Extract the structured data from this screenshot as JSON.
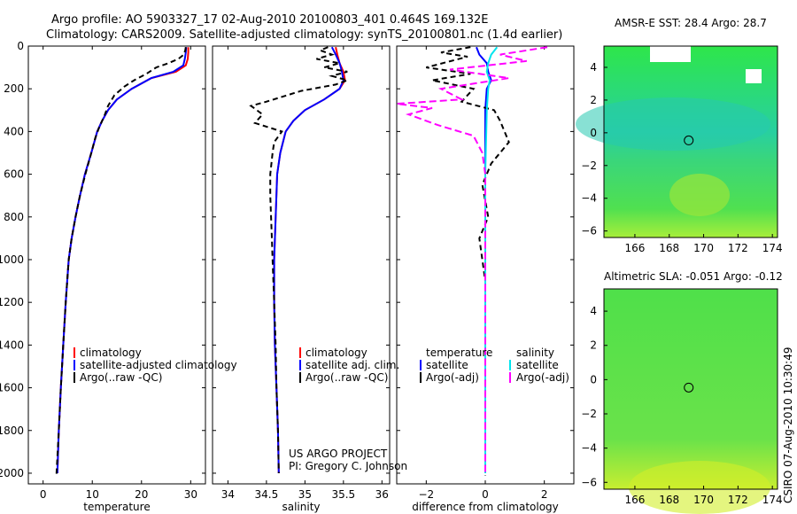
{
  "header": {
    "line1": "Argo profile: AO 5903327_17 02-Aug-2010 20100803_401 0.464S 169.132E",
    "line2": "Climatology: CARS2009. Satellite-adjusted climatology: synTS_20100801.nc (1.4d earlier)"
  },
  "side_label": "CSIRO 07-Aug-2010 10:30:49",
  "project": {
    "line1": "US ARGO PROJECT",
    "line2": "PI: Gregory C. Johnson"
  },
  "colors": {
    "red": "#ff0000",
    "blue": "#0000ff",
    "black": "#000000",
    "cyan": "#00e5ee",
    "magenta": "#ff00ff"
  },
  "chart_data": [
    {
      "id": "temperature",
      "type": "line",
      "xlabel": "temperature",
      "ylabel": "",
      "xlim": [
        -3,
        33
      ],
      "ylim": [
        2050,
        0
      ],
      "xticks": [
        0,
        10,
        20,
        30
      ],
      "yticks": [
        0,
        200,
        400,
        600,
        800,
        1000,
        1200,
        1400,
        1600,
        1800,
        2000
      ],
      "legend": [
        "climatology",
        "satellite-adjusted climatology",
        "Argo(..raw -QC)"
      ],
      "series": [
        {
          "name": "climatology",
          "color": "red",
          "dash": "",
          "points": [
            [
              29.5,
              5
            ],
            [
              29.5,
              30
            ],
            [
              29.4,
              60
            ],
            [
              29,
              90
            ],
            [
              27,
              120
            ],
            [
              22,
              150
            ],
            [
              18,
              200
            ],
            [
              15,
              250
            ],
            [
              13.2,
              300
            ],
            [
              12,
              350
            ],
            [
              11,
              400
            ],
            [
              9.8,
              500
            ],
            [
              8.5,
              600
            ],
            [
              7.5,
              700
            ],
            [
              6.6,
              800
            ],
            [
              5.8,
              900
            ],
            [
              5.2,
              1000
            ],
            [
              4.6,
              1200
            ],
            [
              4.1,
              1400
            ],
            [
              3.6,
              1600
            ],
            [
              3.2,
              1800
            ],
            [
              2.9,
              2000
            ]
          ]
        },
        {
          "name": "satellite-adjusted climatology",
          "color": "blue",
          "dash": "",
          "points": [
            [
              29.1,
              5
            ],
            [
              29.0,
              30
            ],
            [
              28.8,
              60
            ],
            [
              28.5,
              90
            ],
            [
              26.5,
              120
            ],
            [
              22,
              150
            ],
            [
              18,
              200
            ],
            [
              15,
              250
            ],
            [
              13.2,
              300
            ],
            [
              12,
              350
            ],
            [
              11,
              400
            ],
            [
              9.8,
              500
            ],
            [
              8.5,
              600
            ],
            [
              7.5,
              700
            ],
            [
              6.6,
              800
            ],
            [
              5.8,
              900
            ],
            [
              5.2,
              1000
            ],
            [
              4.6,
              1200
            ],
            [
              4.1,
              1400
            ],
            [
              3.6,
              1600
            ],
            [
              3.2,
              1800
            ],
            [
              2.9,
              2000
            ]
          ]
        },
        {
          "name": "Argo(..raw -QC)",
          "color": "black",
          "dash": "6,4",
          "points": [
            [
              29.0,
              5
            ],
            [
              28.9,
              20
            ],
            [
              28.6,
              40
            ],
            [
              27.5,
              60
            ],
            [
              25.5,
              80
            ],
            [
              23,
              100
            ],
            [
              21,
              130
            ],
            [
              18.5,
              160
            ],
            [
              16.5,
              190
            ],
            [
              14.5,
              230
            ],
            [
              13.2,
              280
            ],
            [
              12.4,
              330
            ],
            [
              11.4,
              380
            ],
            [
              10.6,
              430
            ],
            [
              9.8,
              500
            ],
            [
              8.6,
              600
            ],
            [
              7.5,
              700
            ],
            [
              6.6,
              800
            ],
            [
              5.8,
              900
            ],
            [
              5.2,
              1000
            ],
            [
              4.6,
              1200
            ],
            [
              4.1,
              1400
            ],
            [
              3.6,
              1600
            ],
            [
              3.2,
              1800
            ],
            [
              2.7,
              2010
            ]
          ]
        }
      ]
    },
    {
      "id": "salinity",
      "type": "line",
      "xlabel": "salinity",
      "ylabel": "",
      "xlim": [
        33.8,
        36.1
      ],
      "ylim": [
        2050,
        0
      ],
      "xticks": [
        34,
        34.5,
        35,
        35.5,
        36
      ],
      "yticks": [
        0,
        200,
        400,
        600,
        800,
        1000,
        1200,
        1400,
        1600,
        1800,
        2000
      ],
      "legend": [
        "climatology",
        "satellite adj. clim.",
        "Argo(..raw -QC)"
      ],
      "series": [
        {
          "name": "climatology",
          "color": "red",
          "dash": "",
          "points": [
            [
              35.4,
              5
            ],
            [
              35.42,
              40
            ],
            [
              35.45,
              80
            ],
            [
              35.5,
              120
            ],
            [
              35.52,
              160
            ],
            [
              35.45,
              200
            ],
            [
              35.25,
              250
            ],
            [
              35.0,
              300
            ],
            [
              34.85,
              350
            ],
            [
              34.75,
              400
            ],
            [
              34.68,
              500
            ],
            [
              34.64,
              600
            ],
            [
              34.62,
              800
            ],
            [
              34.6,
              1000
            ],
            [
              34.6,
              1200
            ],
            [
              34.61,
              1400
            ],
            [
              34.63,
              1600
            ],
            [
              34.65,
              1800
            ],
            [
              34.66,
              2000
            ]
          ]
        },
        {
          "name": "satellite adj. clim.",
          "color": "blue",
          "dash": "",
          "points": [
            [
              35.35,
              5
            ],
            [
              35.4,
              40
            ],
            [
              35.45,
              80
            ],
            [
              35.48,
              120
            ],
            [
              35.5,
              160
            ],
            [
              35.45,
              200
            ],
            [
              35.25,
              250
            ],
            [
              35.0,
              300
            ],
            [
              34.85,
              350
            ],
            [
              34.75,
              400
            ],
            [
              34.68,
              500
            ],
            [
              34.64,
              600
            ],
            [
              34.62,
              800
            ],
            [
              34.6,
              1000
            ],
            [
              34.6,
              1200
            ],
            [
              34.61,
              1400
            ],
            [
              34.63,
              1600
            ],
            [
              34.65,
              1800
            ],
            [
              34.66,
              2000
            ]
          ]
        },
        {
          "name": "Argo(..raw -QC)",
          "color": "black",
          "dash": "6,4",
          "points": [
            [
              35.3,
              5
            ],
            [
              35.2,
              20
            ],
            [
              35.35,
              40
            ],
            [
              35.15,
              60
            ],
            [
              35.45,
              80
            ],
            [
              35.25,
              100
            ],
            [
              35.55,
              120
            ],
            [
              35.35,
              140
            ],
            [
              35.55,
              160
            ],
            [
              35.4,
              180
            ],
            [
              34.95,
              210
            ],
            [
              34.5,
              260
            ],
            [
              34.3,
              280
            ],
            [
              34.45,
              320
            ],
            [
              34.35,
              360
            ],
            [
              34.7,
              400
            ],
            [
              34.6,
              450
            ],
            [
              34.58,
              500
            ],
            [
              34.55,
              600
            ],
            [
              34.55,
              700
            ],
            [
              34.56,
              800
            ],
            [
              34.57,
              900
            ],
            [
              34.58,
              1000
            ],
            [
              34.6,
              1200
            ],
            [
              34.62,
              1400
            ],
            [
              34.63,
              1600
            ],
            [
              34.65,
              1800
            ],
            [
              34.66,
              2000
            ]
          ]
        }
      ]
    },
    {
      "id": "difference",
      "type": "line",
      "xlabel": "difference from climatology",
      "ylabel": "",
      "xlim": [
        -3,
        3
      ],
      "ylim": [
        2050,
        0
      ],
      "xticks": [
        -2,
        0,
        2
      ],
      "yticks": [
        0,
        200,
        400,
        600,
        800,
        1000,
        1200,
        1400,
        1600,
        1800,
        2000
      ],
      "legend_headers": [
        "temperature",
        "salinity"
      ],
      "legend": [
        "satellite",
        "Argo(-adj)",
        "satellite",
        "Argo(-adj)"
      ],
      "series": [
        {
          "name": "temperature satellite",
          "color": "blue",
          "dash": "",
          "points": [
            [
              -0.3,
              5
            ],
            [
              -0.2,
              40
            ],
            [
              0.05,
              80
            ],
            [
              0.1,
              120
            ],
            [
              0.2,
              160
            ],
            [
              0.05,
              200
            ],
            [
              0,
              300
            ],
            [
              0,
              600
            ],
            [
              0,
              1000
            ],
            [
              0,
              1500
            ],
            [
              0,
              2000
            ]
          ]
        },
        {
          "name": "temperature Argo(-adj)",
          "color": "black",
          "dash": "6,4",
          "points": [
            [
              -0.5,
              5
            ],
            [
              -1.5,
              30
            ],
            [
              -0.6,
              50
            ],
            [
              -2.0,
              100
            ],
            [
              -0.5,
              130
            ],
            [
              -1.8,
              160
            ],
            [
              -0.4,
              200
            ],
            [
              -0.8,
              260
            ],
            [
              0.3,
              300
            ],
            [
              0.5,
              350
            ],
            [
              0.8,
              450
            ],
            [
              0.2,
              550
            ],
            [
              -0.1,
              650
            ],
            [
              0.1,
              800
            ],
            [
              -0.2,
              900
            ],
            [
              0,
              1100
            ],
            [
              0,
              1400
            ],
            [
              0,
              1700
            ],
            [
              0,
              2010
            ]
          ]
        },
        {
          "name": "salinity satellite",
          "color": "cyan",
          "dash": "",
          "points": [
            [
              0.4,
              5
            ],
            [
              0.2,
              40
            ],
            [
              0.1,
              80
            ],
            [
              0.05,
              120
            ],
            [
              0.15,
              160
            ],
            [
              0.1,
              200
            ],
            [
              0.05,
              300
            ],
            [
              0,
              600
            ],
            [
              0,
              1000
            ],
            [
              0,
              1500
            ],
            [
              0,
              2000
            ]
          ]
        },
        {
          "name": "salinity Argo(-adj)",
          "color": "magenta",
          "dash": "8,4",
          "points": [
            [
              2.1,
              5
            ],
            [
              0.5,
              40
            ],
            [
              1.4,
              70
            ],
            [
              -1.2,
              110
            ],
            [
              0.8,
              150
            ],
            [
              -1.5,
              200
            ],
            [
              -0.8,
              250
            ],
            [
              -3.0,
              270
            ],
            [
              -1.8,
              290
            ],
            [
              -2.6,
              320
            ],
            [
              -1.6,
              370
            ],
            [
              -0.4,
              420
            ],
            [
              -0.1,
              500
            ],
            [
              0,
              600
            ],
            [
              0,
              800
            ],
            [
              0,
              1200
            ],
            [
              0,
              2000
            ]
          ]
        }
      ]
    },
    {
      "id": "sst_map",
      "type": "heatmap",
      "title": "AMSR-E SST: 28.4 Argo: 28.7",
      "xticks": [
        166,
        168,
        170,
        172,
        174
      ],
      "yticks": [
        4,
        2,
        0,
        -2,
        -4,
        -6
      ],
      "xlim": [
        164.2,
        174.3
      ],
      "ylim": [
        -6.4,
        5.3
      ],
      "argo_position": [
        169.132,
        -0.464
      ]
    },
    {
      "id": "sla_map",
      "type": "heatmap",
      "title": "Altimetric SLA: -0.051 Argo: -0.12",
      "xticks": [
        166,
        168,
        170,
        172,
        174
      ],
      "yticks": [
        4,
        2,
        0,
        -2,
        -4,
        -6
      ],
      "xlim": [
        164.2,
        174.3
      ],
      "ylim": [
        -6.4,
        5.3
      ],
      "argo_position": [
        169.132,
        -0.464
      ]
    }
  ]
}
